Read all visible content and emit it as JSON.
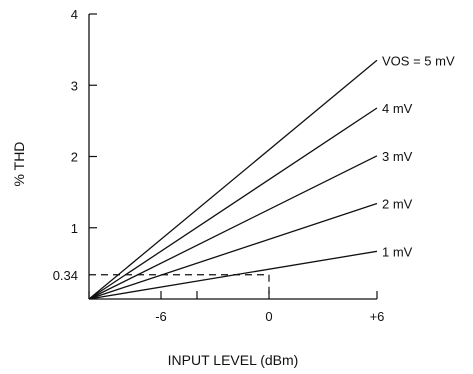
{
  "chart_data": {
    "type": "line",
    "xlabel": "INPUT LEVEL (dBm)",
    "ylabel": "% THD",
    "xlim": [
      -10,
      6
    ],
    "ylim": [
      0,
      4
    ],
    "xticks": [
      {
        "value": -6,
        "label": "-6"
      },
      {
        "value": 0,
        "label": "0"
      },
      {
        "value": 6,
        "label": "+6"
      }
    ],
    "x_minor_ticks": [
      -10,
      -4
    ],
    "yticks": [
      {
        "value": 1,
        "label": "1"
      },
      {
        "value": 2,
        "label": "2"
      },
      {
        "value": 3,
        "label": "3"
      },
      {
        "value": 4,
        "label": "4"
      }
    ],
    "reference": {
      "x": 0,
      "y": 0.34,
      "y_label": "0.34",
      "style": "dashed"
    },
    "series": [
      {
        "name": "VOS = 5 mV",
        "x": [
          -10,
          6
        ],
        "y": [
          0,
          3.35
        ]
      },
      {
        "name": "4 mV",
        "x": [
          -10,
          6
        ],
        "y": [
          0,
          2.68
        ]
      },
      {
        "name": "3 mV",
        "x": [
          -10,
          6
        ],
        "y": [
          0,
          2.01
        ]
      },
      {
        "name": "2 mV",
        "x": [
          -10,
          6
        ],
        "y": [
          0,
          1.34
        ]
      },
      {
        "name": "1 mV",
        "x": [
          -10,
          6
        ],
        "y": [
          0,
          0.67
        ]
      }
    ],
    "grid": false,
    "line_color": "#111111"
  }
}
